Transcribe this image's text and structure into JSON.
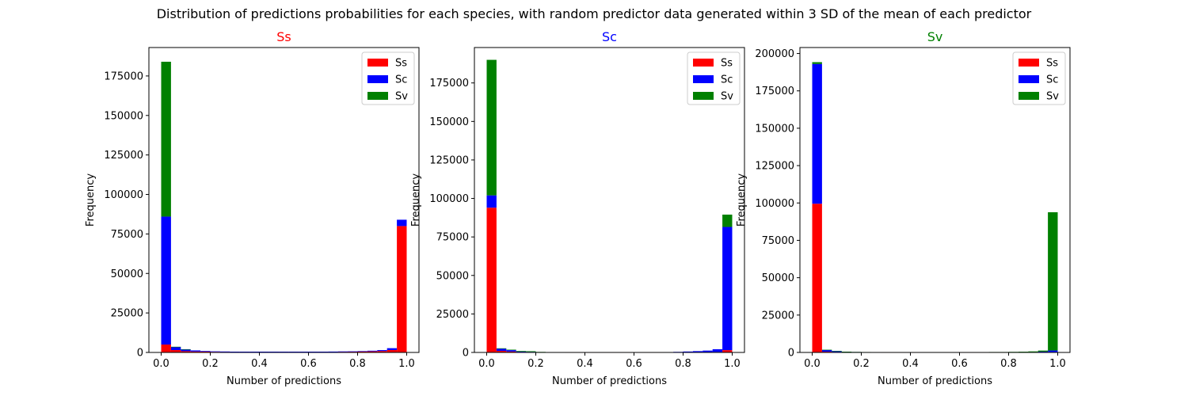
{
  "suptitle": "Distribution of predictions probabilities for each species, with random predictor data generated within 3 SD of the mean of each predictor",
  "colors": {
    "Ss": "#ff0000",
    "Sc": "#0000ff",
    "Sv": "#008000"
  },
  "chart_data": [
    {
      "type": "bar",
      "title": "Ss",
      "title_color": "#ff0000",
      "xlabel": "Number of predictions",
      "ylabel": "Frequency",
      "xlim": [
        -0.05,
        1.05
      ],
      "ylim": [
        0,
        193000
      ],
      "xticks": [
        0.0,
        0.2,
        0.4,
        0.6,
        0.8,
        1.0
      ],
      "xtick_labels": [
        "0.0",
        "0.2",
        "0.4",
        "0.6",
        "0.8",
        "1.0"
      ],
      "yticks": [
        0,
        25000,
        50000,
        75000,
        100000,
        125000,
        150000,
        175000
      ],
      "ytick_labels": [
        "0",
        "25000",
        "50000",
        "75000",
        "100000",
        "125000",
        "150000",
        "175000"
      ],
      "legend": {
        "placement": "top-right",
        "entries": [
          "Ss",
          "Sc",
          "Sv"
        ]
      },
      "stacked": true,
      "bin_width": 0.04,
      "bins": [
        0.0,
        0.04,
        0.08,
        0.12,
        0.16,
        0.2,
        0.24,
        0.28,
        0.32,
        0.36,
        0.4,
        0.44,
        0.48,
        0.52,
        0.56,
        0.6,
        0.64,
        0.68,
        0.72,
        0.76,
        0.8,
        0.84,
        0.88,
        0.92,
        0.96
      ],
      "series": [
        {
          "name": "Ss",
          "values": [
            5000,
            1500,
            800,
            600,
            500,
            400,
            400,
            350,
            350,
            350,
            350,
            350,
            350,
            350,
            350,
            350,
            350,
            400,
            450,
            500,
            600,
            700,
            900,
            1500,
            80000
          ]
        },
        {
          "name": "Sc",
          "values": [
            81000,
            2000,
            1200,
            700,
            400,
            300,
            200,
            150,
            150,
            150,
            150,
            150,
            150,
            150,
            150,
            150,
            150,
            150,
            200,
            200,
            300,
            400,
            600,
            1200,
            4000
          ]
        },
        {
          "name": "Sv",
          "values": [
            98000,
            100,
            50,
            0,
            0,
            0,
            0,
            0,
            0,
            0,
            0,
            0,
            0,
            0,
            0,
            0,
            0,
            0,
            0,
            0,
            0,
            0,
            0,
            0,
            0
          ]
        }
      ]
    },
    {
      "type": "bar",
      "title": "Sc",
      "title_color": "#0000ff",
      "xlabel": "Number of predictions",
      "ylabel": "Frequency",
      "xlim": [
        -0.05,
        1.05
      ],
      "ylim": [
        0,
        198000
      ],
      "xticks": [
        0.0,
        0.2,
        0.4,
        0.6,
        0.8,
        1.0
      ],
      "xtick_labels": [
        "0.0",
        "0.2",
        "0.4",
        "0.6",
        "0.8",
        "1.0"
      ],
      "yticks": [
        0,
        25000,
        50000,
        75000,
        100000,
        125000,
        150000,
        175000
      ],
      "ytick_labels": [
        "0",
        "25000",
        "50000",
        "75000",
        "100000",
        "125000",
        "150000",
        "175000"
      ],
      "legend": {
        "placement": "top-right",
        "entries": [
          "Ss",
          "Sc",
          "Sv"
        ]
      },
      "stacked": true,
      "bin_width": 0.04,
      "bins": [
        0.0,
        0.04,
        0.08,
        0.12,
        0.16,
        0.2,
        0.24,
        0.28,
        0.32,
        0.36,
        0.4,
        0.44,
        0.48,
        0.52,
        0.56,
        0.6,
        0.64,
        0.68,
        0.72,
        0.76,
        0.8,
        0.84,
        0.88,
        0.92,
        0.96
      ],
      "series": [
        {
          "name": "Ss",
          "values": [
            94000,
            1000,
            600,
            300,
            200,
            100,
            80,
            60,
            50,
            50,
            50,
            50,
            50,
            50,
            50,
            50,
            50,
            50,
            60,
            80,
            100,
            150,
            200,
            300,
            1500
          ]
        },
        {
          "name": "Sc",
          "values": [
            8000,
            1500,
            900,
            300,
            200,
            150,
            100,
            100,
            100,
            100,
            100,
            100,
            100,
            100,
            100,
            100,
            100,
            150,
            200,
            300,
            500,
            700,
            1000,
            1800,
            80000
          ]
        },
        {
          "name": "Sv",
          "values": [
            88000,
            200,
            300,
            400,
            400,
            100,
            50,
            0,
            0,
            0,
            0,
            0,
            0,
            0,
            0,
            0,
            0,
            0,
            0,
            0,
            0,
            0,
            0,
            0,
            8000
          ]
        }
      ]
    },
    {
      "type": "bar",
      "title": "Sv",
      "title_color": "#008000",
      "xlabel": "Number of predictions",
      "ylabel": "Frequency",
      "xlim": [
        -0.05,
        1.05
      ],
      "ylim": [
        0,
        204000
      ],
      "xticks": [
        0.0,
        0.2,
        0.4,
        0.6,
        0.8,
        1.0
      ],
      "xtick_labels": [
        "0.0",
        "0.2",
        "0.4",
        "0.6",
        "0.8",
        "1.0"
      ],
      "yticks": [
        0,
        25000,
        50000,
        75000,
        100000,
        125000,
        150000,
        175000,
        200000
      ],
      "ytick_labels": [
        "0",
        "25000",
        "50000",
        "75000",
        "100000",
        "125000",
        "150000",
        "175000",
        "200000"
      ],
      "legend": {
        "placement": "top-right",
        "entries": [
          "Ss",
          "Sc",
          "Sv"
        ]
      },
      "stacked": true,
      "bin_width": 0.04,
      "bins": [
        0.0,
        0.04,
        0.08,
        0.12,
        0.16,
        0.2,
        0.24,
        0.28,
        0.32,
        0.36,
        0.4,
        0.44,
        0.48,
        0.52,
        0.56,
        0.6,
        0.64,
        0.68,
        0.72,
        0.76,
        0.8,
        0.84,
        0.88,
        0.92,
        0.96
      ],
      "series": [
        {
          "name": "Ss",
          "values": [
            99500,
            500,
            300,
            150,
            100,
            80,
            60,
            50,
            50,
            50,
            50,
            0,
            0,
            0,
            0,
            50,
            50,
            50,
            50,
            50,
            60,
            80,
            100,
            150,
            300
          ]
        },
        {
          "name": "Sc",
          "values": [
            93500,
            1200,
            700,
            300,
            200,
            100,
            80,
            50,
            50,
            50,
            50,
            0,
            0,
            0,
            0,
            50,
            50,
            50,
            50,
            50,
            80,
            100,
            200,
            400,
            1000
          ]
        },
        {
          "name": "Sv",
          "values": [
            1200,
            100,
            50,
            50,
            50,
            100,
            100,
            100,
            100,
            100,
            100,
            0,
            0,
            0,
            0,
            150,
            150,
            150,
            200,
            200,
            250,
            300,
            400,
            700,
            92500
          ]
        }
      ]
    }
  ]
}
